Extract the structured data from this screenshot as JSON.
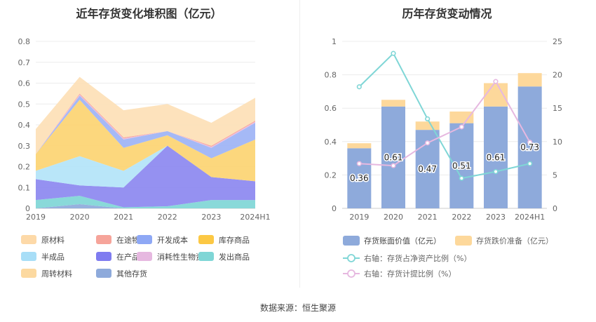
{
  "titles": {
    "left": "近年存货变化堆积图（亿元）",
    "right": "历年存货变动情况"
  },
  "source": "数据来源：恒生聚源",
  "chart_data": [
    {
      "type": "area",
      "stacked": true,
      "title": "近年存货变化堆积图（亿元）",
      "categories": [
        "2019",
        "2020",
        "2021",
        "2022",
        "2023",
        "2024H1"
      ],
      "ylim": [
        0,
        0.8
      ],
      "yticks": [
        0,
        0.1,
        0.2,
        0.3,
        0.4,
        0.5,
        0.6,
        0.7,
        0.8
      ],
      "series": [
        {
          "name": "其他存货",
          "color": "#8eaadb",
          "values": [
            0,
            0.02,
            0,
            0,
            0,
            0
          ]
        },
        {
          "name": "发出商品",
          "color": "#7fd6d6",
          "values": [
            0.04,
            0.04,
            0.005,
            0.01,
            0.04,
            0.04
          ]
        },
        {
          "name": "在产品",
          "color": "#8c88f0",
          "values": [
            0.1,
            0.05,
            0.095,
            0.29,
            0.11,
            0.09
          ]
        },
        {
          "name": "半成品",
          "color": "#b3e4f9",
          "values": [
            0.04,
            0.14,
            0.08,
            0,
            0,
            0
          ]
        },
        {
          "name": "库存商品",
          "color": "#fcd472",
          "values": [
            0.08,
            0.27,
            0.11,
            0.05,
            0.09,
            0.2
          ]
        },
        {
          "name": "开发成本",
          "color": "#9db3f5",
          "values": [
            0,
            0.02,
            0.04,
            0.02,
            0.05,
            0.08
          ]
        },
        {
          "name": "消耗性生物资产",
          "color": "#e6b8e0",
          "values": [
            0,
            0.005,
            0.005,
            0,
            0.005,
            0.005
          ]
        },
        {
          "name": "在途物资",
          "color": "#f6a49a",
          "values": [
            0,
            0.005,
            0.005,
            0,
            0.005,
            0.005
          ]
        },
        {
          "name": "原材料",
          "color": "#fde0b6",
          "values": [
            0.12,
            0.08,
            0.13,
            0.13,
            0.11,
            0.11
          ]
        }
      ],
      "legend": [
        {
          "name": "原材料",
          "color": "#fdd9a8"
        },
        {
          "name": "在途物资",
          "color": "#f6a49a"
        },
        {
          "name": "开发成本",
          "color": "#8ea8f5"
        },
        {
          "name": "库存商品",
          "color": "#fcc844"
        },
        {
          "name": "半成品",
          "color": "#a8def7"
        },
        {
          "name": "在产品",
          "color": "#7f7cf0"
        },
        {
          "name": "消耗性生物资产",
          "color": "#e6b8e0"
        },
        {
          "name": "发出商品",
          "color": "#7fd6d6"
        },
        {
          "name": "周转材料",
          "color": "#fcd9a0"
        },
        {
          "name": "其他存货",
          "color": "#8eaadb"
        }
      ],
      "legend_position": "bottom"
    },
    {
      "type": "bar",
      "title": "历年存货变动情况",
      "categories": [
        "2019",
        "2020",
        "2021",
        "2022",
        "2023",
        "2024H1"
      ],
      "ylim_left": [
        0,
        1
      ],
      "yticks_left": [
        "0",
        "0.2",
        "0.4",
        "0.6",
        "0.8",
        "1"
      ],
      "ylim_right": [
        0,
        25
      ],
      "yticks_right": [
        "0",
        "5",
        "10",
        "15",
        "20",
        "25"
      ],
      "series": [
        {
          "name": "存货账面价值（亿元）",
          "type": "bar",
          "axis": "left",
          "color": "#8eaadb",
          "values": [
            0.36,
            0.61,
            0.47,
            0.51,
            0.61,
            0.73
          ],
          "labels": [
            "0.36",
            "0.61",
            "0.47",
            "0.51",
            "0.61",
            "0.73"
          ]
        },
        {
          "name": "存货跌价准备（亿元）",
          "type": "bar",
          "axis": "left",
          "stacked": true,
          "color": "#fdd89b",
          "values": [
            0.03,
            0.04,
            0.05,
            0.07,
            0.14,
            0.08
          ]
        },
        {
          "name": "右轴：存货占净资产比例（%）",
          "type": "line",
          "axis": "right",
          "color": "#7fd6d6",
          "values": [
            18.2,
            23.2,
            13.4,
            4.5,
            5.5,
            6.7
          ]
        },
        {
          "name": "右轴：存货计提比例（%）",
          "type": "line",
          "axis": "right",
          "color": "#e6b8e0",
          "values": [
            6.7,
            6.4,
            9.8,
            12.2,
            19.0,
            9.9
          ]
        }
      ],
      "legend_position": "bottom"
    }
  ]
}
